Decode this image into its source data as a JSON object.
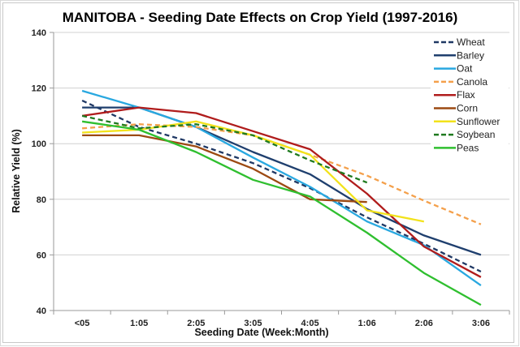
{
  "chart_data": {
    "type": "line",
    "title": "MANITOBA - Seeding Date Effects on  Crop Yield (1997-2016)",
    "xlabel": "Seeding Date (Week:Month)",
    "ylabel": "Relative Yield (%)",
    "ylim": [
      40,
      140
    ],
    "yticks": [
      40,
      60,
      80,
      100,
      120,
      140
    ],
    "grid": true,
    "legend_position": "top-right",
    "categories": [
      "<05",
      "1:05",
      "2:05",
      "3:05",
      "4:05",
      "1:06",
      "2:06",
      "3:06"
    ],
    "series": [
      {
        "name": "Wheat",
        "color": "#1f3864",
        "dashed": true,
        "values": [
          115.5,
          106,
          100,
          93,
          84,
          73.5,
          64,
          54
        ]
      },
      {
        "name": "Barley",
        "color": "#1f3f6e",
        "dashed": false,
        "values": [
          113,
          113,
          106,
          97,
          89,
          76.5,
          67,
          60
        ]
      },
      {
        "name": "Oat",
        "color": "#29a8e0",
        "dashed": false,
        "values": [
          119,
          113,
          106,
          95,
          84.5,
          72,
          63.5,
          49
        ]
      },
      {
        "name": "Canola",
        "color": "#f4a04b",
        "dashed": true,
        "values": [
          105.5,
          107,
          106,
          103,
          96,
          88.5,
          79.5,
          71
        ]
      },
      {
        "name": "Flax",
        "color": "#b01c1c",
        "dashed": false,
        "values": [
          110,
          113,
          111,
          104.5,
          98,
          82,
          63,
          52
        ]
      },
      {
        "name": "Corn",
        "color": "#9c4a12",
        "dashed": false,
        "values": [
          103,
          103,
          99,
          91,
          80,
          79,
          null,
          null
        ]
      },
      {
        "name": "Sunflower",
        "color": "#f2e21b",
        "dashed": false,
        "values": [
          104,
          105,
          108,
          103,
          96,
          76,
          72,
          null
        ]
      },
      {
        "name": "Soybean",
        "color": "#1f7a1f",
        "dashed": true,
        "values": [
          110,
          105.5,
          107,
          103,
          94,
          86,
          null,
          null
        ]
      },
      {
        "name": "Peas",
        "color": "#2fbf2f",
        "dashed": false,
        "values": [
          108,
          105,
          97,
          87,
          81,
          68,
          53.5,
          42
        ]
      }
    ]
  }
}
